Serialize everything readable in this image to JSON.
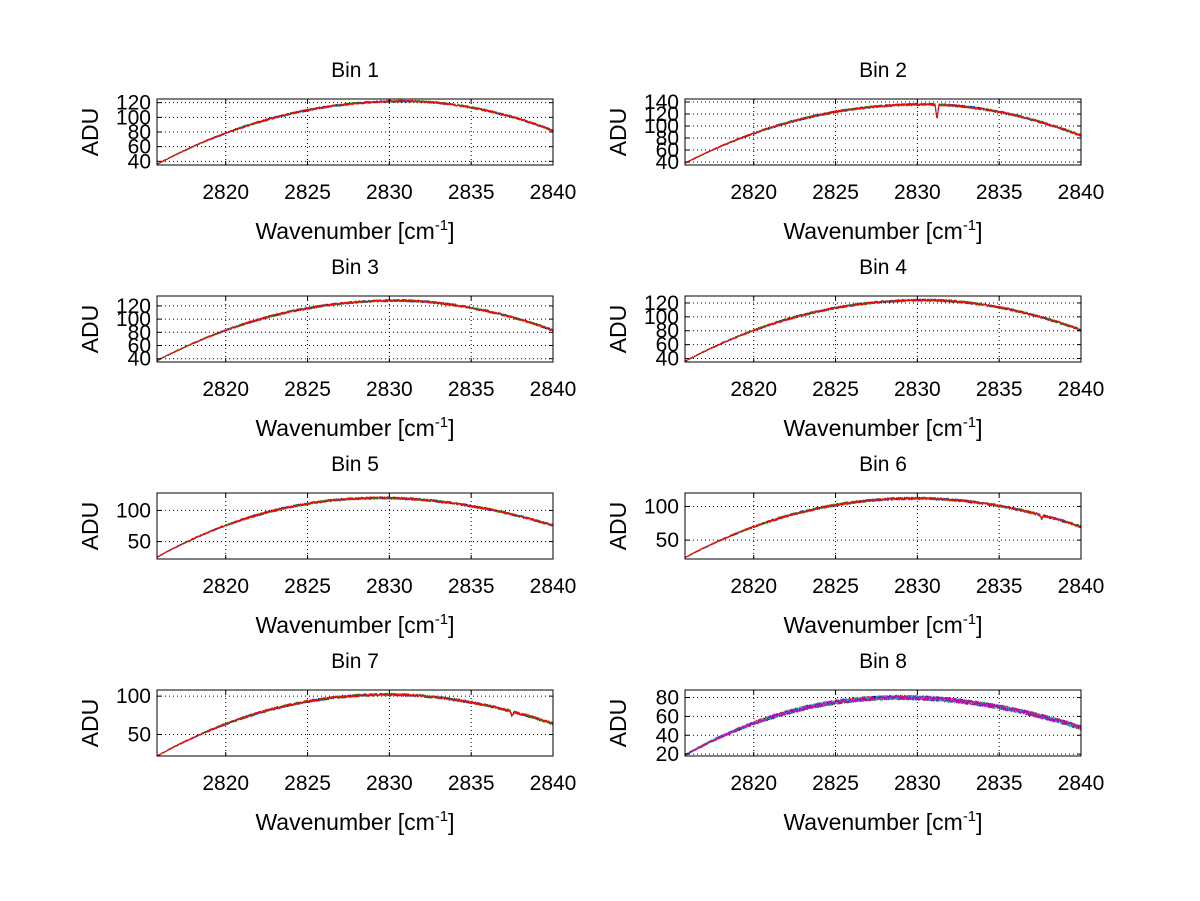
{
  "chart_data": [
    {
      "type": "line",
      "title": "Bin 1",
      "xlabel": "Wavenumber [cm",
      "xlabel_sup": "-1",
      "xlabel_end": "]",
      "ylabel": "ADU",
      "xlim": [
        2815.8,
        2840
      ],
      "ylim": [
        35,
        125
      ],
      "xticks": [
        2820,
        2825,
        2830,
        2835,
        2840
      ],
      "yticks": [
        40,
        60,
        80,
        100,
        120
      ],
      "shape": {
        "start": 36,
        "peak": 122,
        "peak_x": 2831,
        "end": 82
      },
      "noise": 1.5,
      "series_colors": [
        "#0000ff",
        "#00a000",
        "#ff0000"
      ],
      "dips": []
    },
    {
      "type": "line",
      "title": "Bin 2",
      "xlabel": "Wavenumber [cm",
      "xlabel_sup": "-1",
      "xlabel_end": "]",
      "ylabel": "ADU",
      "xlim": [
        2815.8,
        2840
      ],
      "ylim": [
        35,
        145
      ],
      "xticks": [
        2820,
        2825,
        2830,
        2835,
        2840
      ],
      "yticks": [
        40,
        60,
        80,
        100,
        120,
        140
      ],
      "shape": {
        "start": 38,
        "peak": 136,
        "peak_x": 2830.5,
        "end": 84
      },
      "noise": 2,
      "series_colors": [
        "#0000ff",
        "#00a000",
        "#ff0000"
      ],
      "dips": [
        {
          "x": 2831.2,
          "depth": 24
        }
      ]
    },
    {
      "type": "line",
      "title": "Bin 3",
      "xlabel": "Wavenumber [cm",
      "xlabel_sup": "-1",
      "xlabel_end": "]",
      "ylabel": "ADU",
      "xlim": [
        2815.8,
        2840
      ],
      "ylim": [
        35,
        135
      ],
      "xticks": [
        2820,
        2825,
        2830,
        2835,
        2840
      ],
      "yticks": [
        40,
        60,
        80,
        100,
        120
      ],
      "shape": {
        "start": 37,
        "peak": 128,
        "peak_x": 2830.5,
        "end": 83
      },
      "noise": 1.8,
      "series_colors": [
        "#0000ff",
        "#00a000",
        "#ff0000"
      ],
      "dips": []
    },
    {
      "type": "line",
      "title": "Bin 4",
      "xlabel": "Wavenumber [cm",
      "xlabel_sup": "-1",
      "xlabel_end": "]",
      "ylabel": "ADU",
      "xlim": [
        2815.8,
        2840
      ],
      "ylim": [
        35,
        130
      ],
      "xticks": [
        2820,
        2825,
        2830,
        2835,
        2840
      ],
      "yticks": [
        40,
        60,
        80,
        100,
        120
      ],
      "shape": {
        "start": 36,
        "peak": 124,
        "peak_x": 2830.5,
        "end": 81
      },
      "noise": 1.8,
      "series_colors": [
        "#0000ff",
        "#00a000",
        "#ff0000"
      ],
      "dips": []
    },
    {
      "type": "line",
      "title": "Bin 5",
      "xlabel": "Wavenumber [cm",
      "xlabel_sup": "-1",
      "xlabel_end": "]",
      "ylabel": "ADU",
      "xlim": [
        2815.8,
        2840
      ],
      "ylim": [
        22,
        128
      ],
      "xticks": [
        2820,
        2825,
        2830,
        2835,
        2840
      ],
      "yticks": [
        50,
        100
      ],
      "shape": {
        "start": 25,
        "peak": 120,
        "peak_x": 2829.5,
        "end": 76
      },
      "noise": 2,
      "series_colors": [
        "#0000ff",
        "#00a000",
        "#ff0000"
      ],
      "dips": []
    },
    {
      "type": "line",
      "title": "Bin 6",
      "xlabel": "Wavenumber [cm",
      "xlabel_sup": "-1",
      "xlabel_end": "]",
      "ylabel": "ADU",
      "xlim": [
        2815.8,
        2840
      ],
      "ylim": [
        22,
        120
      ],
      "xticks": [
        2820,
        2825,
        2830,
        2835,
        2840
      ],
      "yticks": [
        50,
        100
      ],
      "shape": {
        "start": 24,
        "peak": 112,
        "peak_x": 2830,
        "end": 70
      },
      "noise": 2,
      "series_colors": [
        "#0000ff",
        "#00a000",
        "#ff0000"
      ],
      "dips": [
        {
          "x": 2837.6,
          "depth": 6
        }
      ]
    },
    {
      "type": "line",
      "title": "Bin 7",
      "xlabel": "Wavenumber [cm",
      "xlabel_sup": "-1",
      "xlabel_end": "]",
      "ylabel": "ADU",
      "xlim": [
        2815.8,
        2840
      ],
      "ylim": [
        22,
        108
      ],
      "xticks": [
        2820,
        2825,
        2830,
        2835,
        2840
      ],
      "yticks": [
        50,
        100
      ],
      "shape": {
        "start": 22,
        "peak": 102,
        "peak_x": 2830,
        "end": 64
      },
      "noise": 1.8,
      "series_colors": [
        "#0000ff",
        "#00a000",
        "#ff0000"
      ],
      "dips": [
        {
          "x": 2837.5,
          "depth": 6
        }
      ]
    },
    {
      "type": "line",
      "title": "Bin 8",
      "xlabel": "Wavenumber [cm",
      "xlabel_sup": "-1",
      "xlabel_end": "]",
      "ylabel": "ADU",
      "xlim": [
        2815.8,
        2840
      ],
      "ylim": [
        18,
        88
      ],
      "xticks": [
        2820,
        2825,
        2830,
        2835,
        2840
      ],
      "yticks": [
        20,
        40,
        60,
        80
      ],
      "shape": {
        "start": 19,
        "peak": 80,
        "peak_x": 2829,
        "end": 48
      },
      "noise": 2.5,
      "series_colors": [
        "#0000ff",
        "#00a000",
        "#ff0000",
        "#00c0c0",
        "#c000c0"
      ],
      "dips": []
    }
  ]
}
